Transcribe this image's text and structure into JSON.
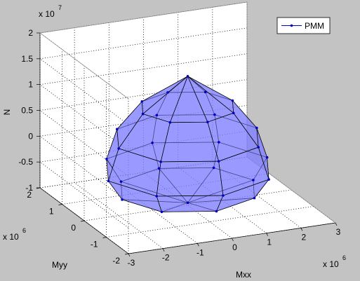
{
  "chart_data": {
    "type": "surface3d",
    "xlabel": "Mxx",
    "ylabel": "Myy",
    "zlabel": "N",
    "x_exponent": {
      "base": "x 10",
      "power": "6"
    },
    "y_exponent": {
      "base": "x 10",
      "power": "6"
    },
    "z_exponent": {
      "base": "x 10",
      "power": "7"
    },
    "xlim": [
      -3000000,
      3000000
    ],
    "ylim": [
      -2000000,
      2000000
    ],
    "zlim": [
      -10000000,
      20000000
    ],
    "xticks": [
      {
        "value": -3000000,
        "label": "-3"
      },
      {
        "value": -2000000,
        "label": "-2"
      },
      {
        "value": -1000000,
        "label": "-1"
      },
      {
        "value": 0,
        "label": "0"
      },
      {
        "value": 1000000,
        "label": "1"
      },
      {
        "value": 2000000,
        "label": "2"
      },
      {
        "value": 3000000,
        "label": "3"
      }
    ],
    "yticks": [
      {
        "value": -2000000,
        "label": "-2"
      },
      {
        "value": -1000000,
        "label": "-1"
      },
      {
        "value": 0,
        "label": "0"
      },
      {
        "value": 1000000,
        "label": "1"
      },
      {
        "value": 2000000,
        "label": "2"
      }
    ],
    "zticks": [
      {
        "value": -10000000,
        "label": "-1"
      },
      {
        "value": -5000000,
        "label": "-0.5"
      },
      {
        "value": 0,
        "label": "0"
      },
      {
        "value": 5000000,
        "label": "0.5"
      },
      {
        "value": 10000000,
        "label": "1"
      },
      {
        "value": 15000000,
        "label": "1.5"
      },
      {
        "value": 20000000,
        "label": "2"
      }
    ],
    "grid": true,
    "legend": "upper right",
    "series": [
      {
        "name": "PMM",
        "color": "#0000cc",
        "face_color": "#7f7fff",
        "x": [
          0,
          1300000,
          919000,
          0,
          -919000,
          -1300000,
          -919000,
          0,
          919000,
          2000000,
          1414000,
          0,
          -1414000,
          -2000000,
          -1414000,
          0,
          1414000,
          2300000,
          1626000,
          0,
          -1626000,
          -2300000,
          -1626000,
          0,
          1626000,
          1900000,
          1343000,
          0,
          -1343000,
          -1900000,
          -1343000,
          0,
          1343000,
          0
        ],
        "y": [
          0,
          0,
          636000,
          900000,
          636000,
          0,
          -636000,
          -900000,
          -636000,
          0,
          990000,
          1400000,
          990000,
          0,
          -990000,
          -1400000,
          -990000,
          0,
          1131000,
          1600000,
          1131000,
          0,
          -1131000,
          -1600000,
          -1131000,
          0,
          919000,
          1300000,
          919000,
          0,
          -919000,
          -1300000,
          -919000,
          0
        ],
        "z": [
          15000000,
          9000000,
          9000000,
          9000000,
          9000000,
          9000000,
          9000000,
          9000000,
          9000000,
          3000000,
          3000000,
          3000000,
          3000000,
          3000000,
          3000000,
          3000000,
          3000000,
          -3000000,
          -3000000,
          -3000000,
          -3000000,
          -3000000,
          -3000000,
          -3000000,
          -3000000,
          -7000000,
          -7000000,
          -7000000,
          -7000000,
          -7000000,
          -7000000,
          -7000000,
          -7000000,
          -9500000
        ]
      }
    ]
  }
}
